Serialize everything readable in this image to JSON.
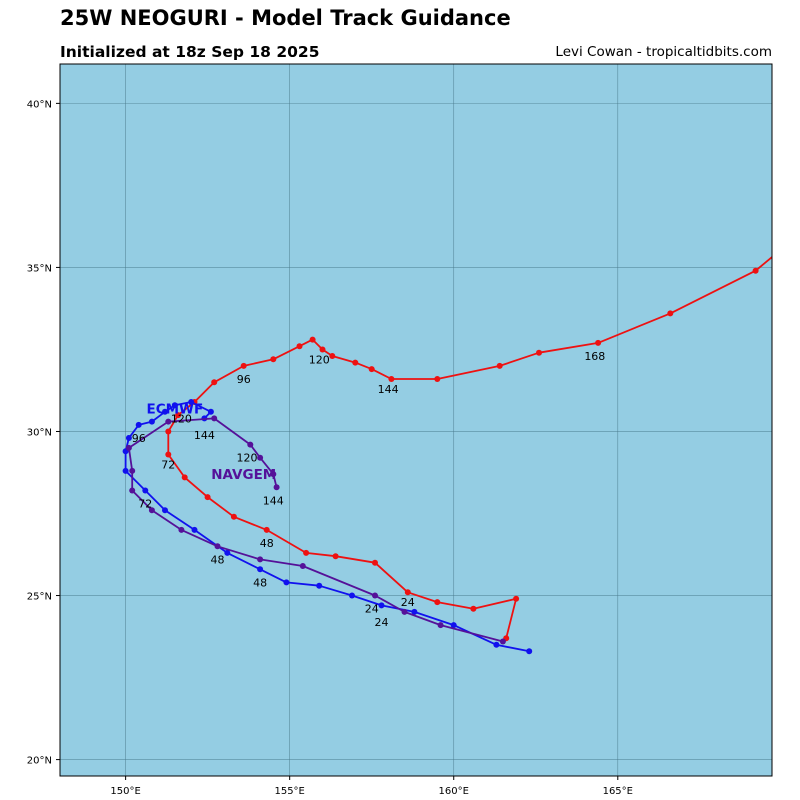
{
  "header": {
    "title": "25W NEOGURI - Model Track Guidance",
    "subtitle": "Initialized at 18z Sep 18 2025",
    "credit": "Levi Cowan - tropicaltidbits.com"
  },
  "colors": {
    "ocean": "#94cde3",
    "grid": "#4a7b8c",
    "red_track": "#ee1111",
    "blue_track": "#1111ee",
    "purple_track": "#551199"
  },
  "map": {
    "lon_range": [
      148,
      169.7
    ],
    "lat_range": [
      19.5,
      41.2
    ],
    "lon_ticks": [
      150,
      155,
      160,
      165
    ],
    "lat_ticks": [
      20,
      25,
      30,
      35,
      40
    ],
    "lon_tick_labels": [
      "150°E",
      "155°E",
      "160°E",
      "165°E"
    ],
    "lat_tick_labels": [
      "20°N",
      "25°N",
      "30°N",
      "35°N",
      "40°N"
    ]
  },
  "chart_data": {
    "type": "map",
    "tracks": [
      {
        "name": "",
        "color": "#ee1111",
        "points": [
          [
            61.6,
            23.7
          ],
          [
            61.9,
            24.9
          ],
          [
            60.6,
            24.6
          ],
          [
            59.5,
            24.8
          ],
          [
            58.6,
            25.1
          ],
          [
            57.6,
            26.0
          ],
          [
            56.4,
            26.2
          ],
          [
            55.5,
            26.3
          ],
          [
            54.3,
            27.0
          ],
          [
            53.3,
            27.4
          ],
          [
            52.5,
            28.0
          ],
          [
            51.8,
            28.6
          ],
          [
            51.3,
            29.3
          ],
          [
            51.3,
            30.0
          ],
          [
            51.6,
            30.5
          ],
          [
            52.1,
            30.9
          ],
          [
            52.7,
            31.5
          ],
          [
            53.6,
            32.0
          ],
          [
            54.5,
            32.2
          ],
          [
            55.3,
            32.6
          ],
          [
            55.7,
            32.8
          ],
          [
            56.0,
            32.5
          ],
          [
            56.3,
            32.3
          ],
          [
            57.0,
            32.1
          ],
          [
            57.5,
            31.9
          ],
          [
            58.1,
            31.6
          ],
          [
            59.5,
            31.6
          ],
          [
            61.4,
            32.0
          ],
          [
            62.6,
            32.4
          ],
          [
            64.4,
            32.7
          ],
          [
            66.6,
            33.6
          ],
          [
            69.2,
            34.9
          ],
          [
            69.8,
            35.4
          ]
        ]
      },
      {
        "name": "ECMWF",
        "color": "#1111ee",
        "points": [
          [
            62.3,
            23.3
          ],
          [
            61.3,
            23.5
          ],
          [
            60.0,
            24.1
          ],
          [
            58.8,
            24.5
          ],
          [
            57.8,
            24.7
          ],
          [
            56.9,
            25.0
          ],
          [
            55.9,
            25.3
          ],
          [
            54.9,
            25.4
          ],
          [
            54.1,
            25.8
          ],
          [
            53.1,
            26.3
          ],
          [
            52.1,
            27.0
          ],
          [
            51.2,
            27.6
          ],
          [
            50.6,
            28.2
          ],
          [
            50.0,
            28.8
          ],
          [
            50.0,
            29.4
          ],
          [
            50.1,
            29.8
          ],
          [
            50.4,
            30.2
          ],
          [
            50.8,
            30.3
          ],
          [
            51.2,
            30.6
          ],
          [
            51.5,
            30.8
          ],
          [
            52.0,
            30.9
          ],
          [
            52.6,
            30.6
          ],
          [
            52.4,
            30.4
          ]
        ]
      },
      {
        "name": "NAVGEM",
        "color": "#551199",
        "points": [
          [
            61.5,
            23.6
          ],
          [
            59.6,
            24.1
          ],
          [
            58.5,
            24.5
          ],
          [
            57.6,
            25.0
          ],
          [
            55.4,
            25.9
          ],
          [
            54.1,
            26.1
          ],
          [
            52.8,
            26.5
          ],
          [
            51.7,
            27.0
          ],
          [
            50.8,
            27.6
          ],
          [
            50.2,
            28.2
          ],
          [
            50.2,
            28.8
          ],
          [
            50.1,
            29.5
          ],
          [
            51.3,
            30.3
          ],
          [
            52.7,
            30.4
          ],
          [
            53.8,
            29.6
          ],
          [
            54.1,
            29.2
          ],
          [
            54.5,
            28.7
          ],
          [
            54.6,
            28.3
          ]
        ]
      }
    ],
    "hour_labels": [
      {
        "text": "168",
        "lon": 164.3,
        "lat": 32.3
      },
      {
        "text": "144",
        "lon": 158.0,
        "lat": 31.3
      },
      {
        "text": "120",
        "lon": 155.9,
        "lat": 32.2
      },
      {
        "text": "96",
        "lon": 153.6,
        "lat": 31.6
      },
      {
        "text": "72",
        "lon": 151.3,
        "lat": 29.0
      },
      {
        "text": "48",
        "lon": 154.3,
        "lat": 26.6
      },
      {
        "text": "24",
        "lon": 158.6,
        "lat": 24.8
      },
      {
        "text": "120",
        "lon": 151.7,
        "lat": 30.4
      },
      {
        "text": "96",
        "lon": 150.4,
        "lat": 29.8
      },
      {
        "text": "72",
        "lon": 150.6,
        "lat": 27.8
      },
      {
        "text": "48",
        "lon": 154.1,
        "lat": 25.4
      },
      {
        "text": "24",
        "lon": 157.8,
        "lat": 24.2
      },
      {
        "text": "144",
        "lon": 152.4,
        "lat": 29.9
      },
      {
        "text": "120",
        "lon": 153.7,
        "lat": 29.2
      },
      {
        "text": "144",
        "lon": 154.5,
        "lat": 27.9
      },
      {
        "text": "48",
        "lon": 152.8,
        "lat": 26.1
      },
      {
        "text": "24",
        "lon": 157.5,
        "lat": 24.6
      }
    ],
    "model_labels": [
      {
        "text": "ECMWF",
        "lon": 151.5,
        "lat": 30.7,
        "color": "#1111ee"
      },
      {
        "text": "NAVGEM",
        "lon": 153.6,
        "lat": 28.7,
        "color": "#551199"
      }
    ]
  }
}
